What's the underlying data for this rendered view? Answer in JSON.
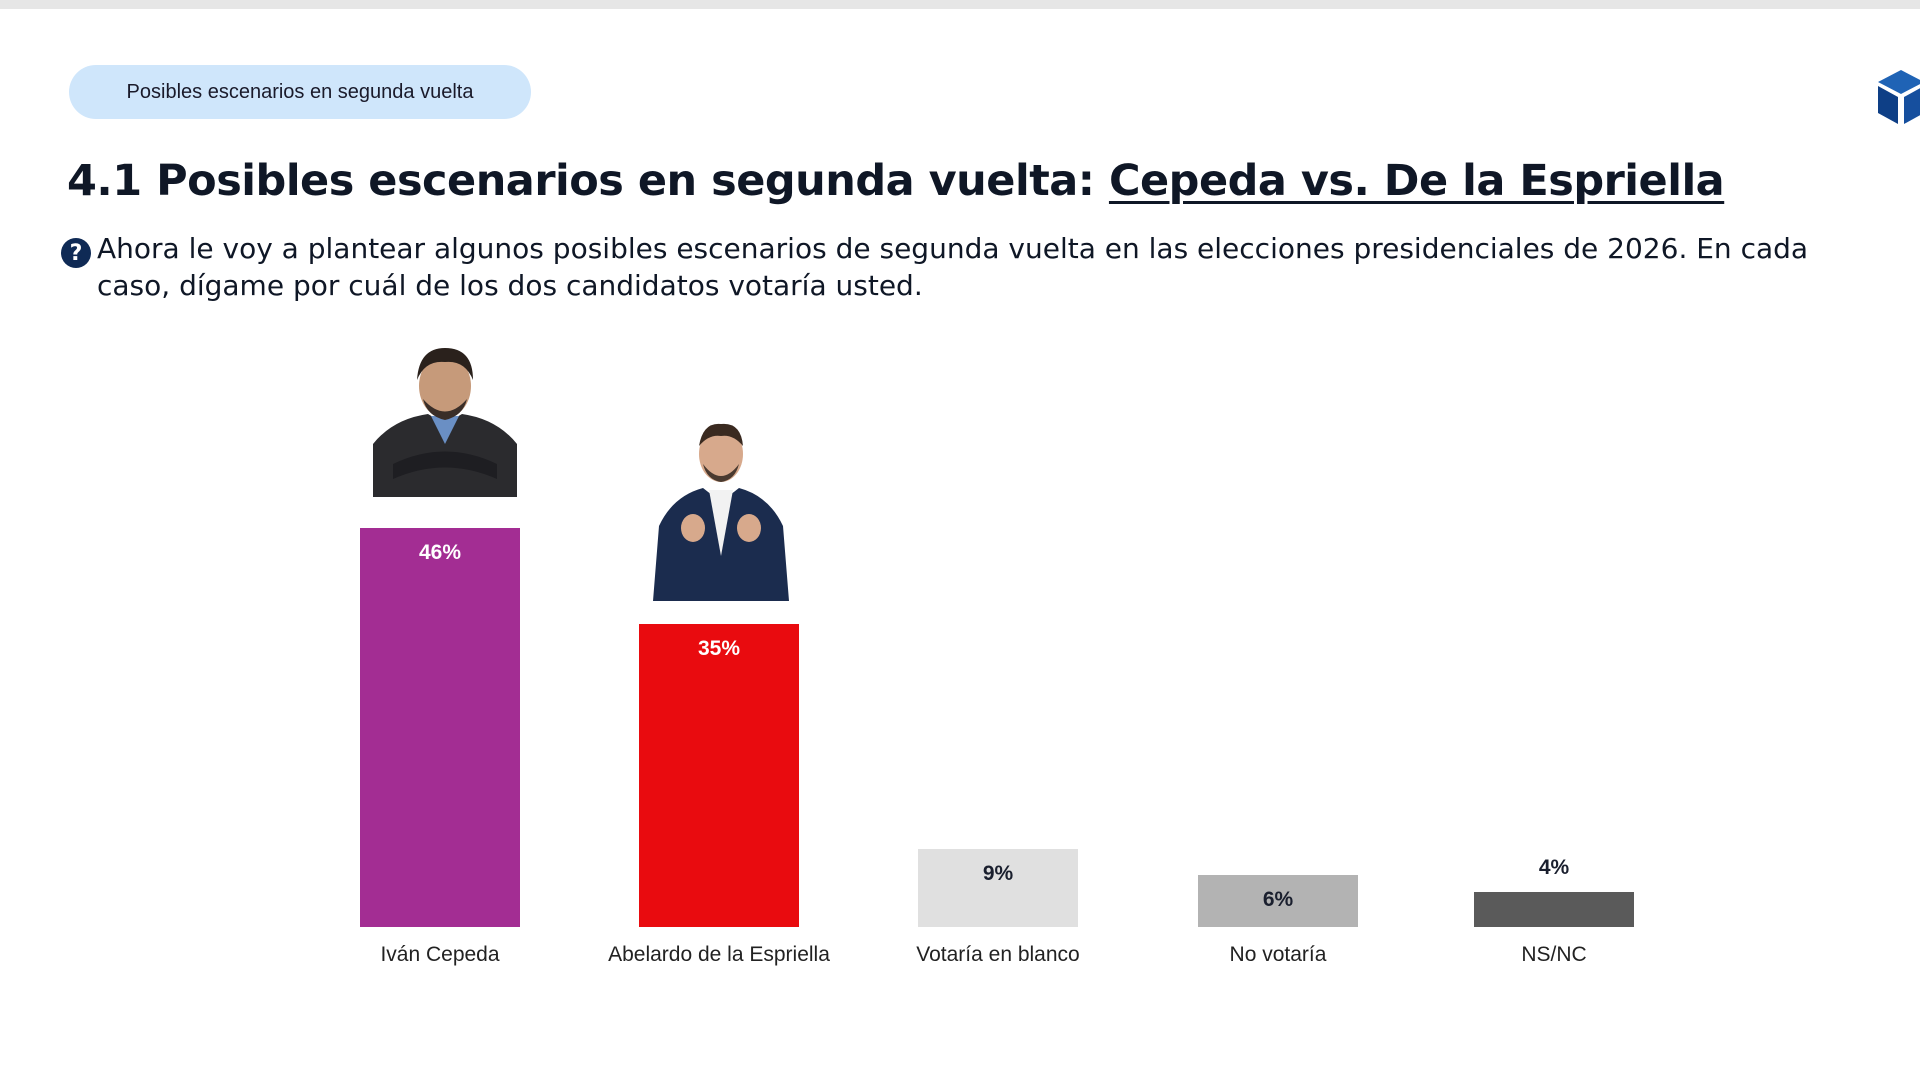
{
  "header": {
    "section_tag": "Posibles escenarios en segunda vuelta",
    "title_prefix": "4.1 Posibles escenarios en segunda vuelta: ",
    "title_emphasis": "Cepeda vs. De la Espriella",
    "question": "Ahora le voy a plantear algunos posibles escenarios de segunda vuelta en las elecciones presidenciales de 2026. En cada caso, dígame por cuál de los dos candidatos votaría usted.",
    "question_icon": "question-circle-icon",
    "logo_icon": "cube-logo-icon"
  },
  "chart_data": {
    "type": "bar",
    "categories": [
      "Iván Cepeda",
      "Abelardo de la Espriella",
      "Votaría en blanco",
      "No votaría",
      "NS/NC"
    ],
    "values": [
      46,
      35,
      9,
      6,
      4
    ],
    "data_labels": [
      "46%",
      "35%",
      "9%",
      "6%",
      "4%"
    ],
    "colors": [
      "#a32d93",
      "#e90b0f",
      "#e0e0e0",
      "#b3b3b3",
      "#5a5a5a"
    ],
    "label_colors": [
      "#ffffff",
      "#ffffff",
      "#1a1f2e",
      "#1a1f2e",
      "#1a1f2e"
    ],
    "label_inside": [
      true,
      true,
      true,
      true,
      false
    ],
    "grid": false,
    "y_axis_visible": false
  }
}
